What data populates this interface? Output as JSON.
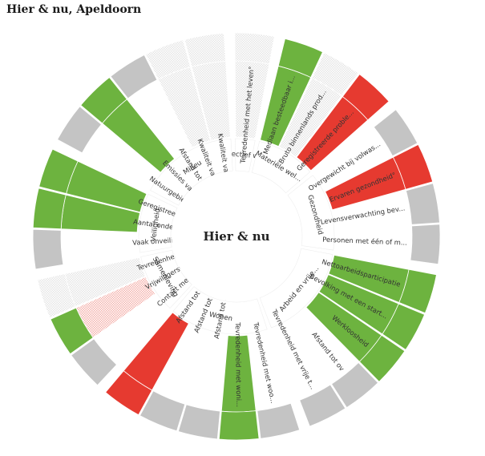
{
  "page": {
    "title": "Hier & nu, Apeldoorn"
  },
  "colors": {
    "green": "#6db33f",
    "red": "#e63a30",
    "grey": "#c4c4c4",
    "white": "#ffffff",
    "hatch": "#e6e6e6",
    "hatch_red": "#f4b3ae"
  },
  "chart_data": {
    "type": "radial",
    "title": "Hier & nu",
    "themes": [
      {
        "name": "Subjectief wel...",
        "indicators": [
          {
            "label": "Tevredenheid met het leven°",
            "status": "none"
          }
        ]
      },
      {
        "name": "Materiële wel...",
        "indicators": [
          {
            "label": "Mediaan besteedbaar i...",
            "status": "green"
          },
          {
            "label": "Bruto binnenlands prod...",
            "status": "none"
          },
          {
            "label": "Geregistreerde proble...",
            "status": "red"
          }
        ]
      },
      {
        "name": "Gezondheid",
        "indicators": [
          {
            "label": "Overgewicht bij volwas...",
            "status": "grey"
          },
          {
            "label": "Ervaren gezondheid°",
            "status": "red"
          },
          {
            "label": "Levensverwachting bev...",
            "status": "white"
          },
          {
            "label": "Personen met één of m...",
            "status": "grey"
          }
        ]
      },
      {
        "name": "Arbeid en vrije...",
        "indicators": [
          {
            "label": "Nettoarbeidsparticipatie",
            "status": "green"
          },
          {
            "label": "Bevolking met een start...",
            "status": "green"
          },
          {
            "label": "Werkloosheid",
            "status": "green"
          },
          {
            "label": "Afstand tot ov",
            "status": "grey"
          },
          {
            "label": "Tevredenheid met vrije t...",
            "status": "white"
          }
        ]
      },
      {
        "name": "Wonen",
        "indicators": [
          {
            "label": "Tevredenheid met woo...",
            "status": "white"
          },
          {
            "label": "Tevredenheid met woni...",
            "status": "green"
          },
          {
            "label": "Afstand tot sporttermein",
            "status": "white"
          },
          {
            "label": "Afstand tot basisschool°",
            "status": "grey"
          },
          {
            "label": "Afstand tot café e.d.°",
            "status": "red"
          }
        ]
      },
      {
        "name": "Samenleving",
        "indicators": [
          {
            "label": "Contact met familie, vri...",
            "status": "white"
          },
          {
            "label": "Vrijwilligerswerk°",
            "status": "hatch-red"
          },
          {
            "label": "Tevredenheid met socia...",
            "status": "none"
          }
        ]
      },
      {
        "name": "Veiligheid",
        "indicators": [
          {
            "label": "Vaak onveilig voelen in ...",
            "status": "grey"
          },
          {
            "label": "Aantal ondervonden del...",
            "status": "green"
          },
          {
            "label": "Geregistreerde misdrijv...",
            "status": "green"
          }
        ]
      },
      {
        "name": "Milieu",
        "indicators": [
          {
            "label": "Natuurgebied per inwo...",
            "status": "white"
          },
          {
            "label": "Emissies van fijnstof naa...",
            "status": "green"
          },
          {
            "label": "Afstand tot openbaar gr...",
            "status": "grey"
          },
          {
            "label": "Kwaliteit van zwemwat...",
            "status": "none"
          },
          {
            "label": "Kwaliteit van zwemwat...",
            "status": "none"
          }
        ]
      }
    ]
  }
}
